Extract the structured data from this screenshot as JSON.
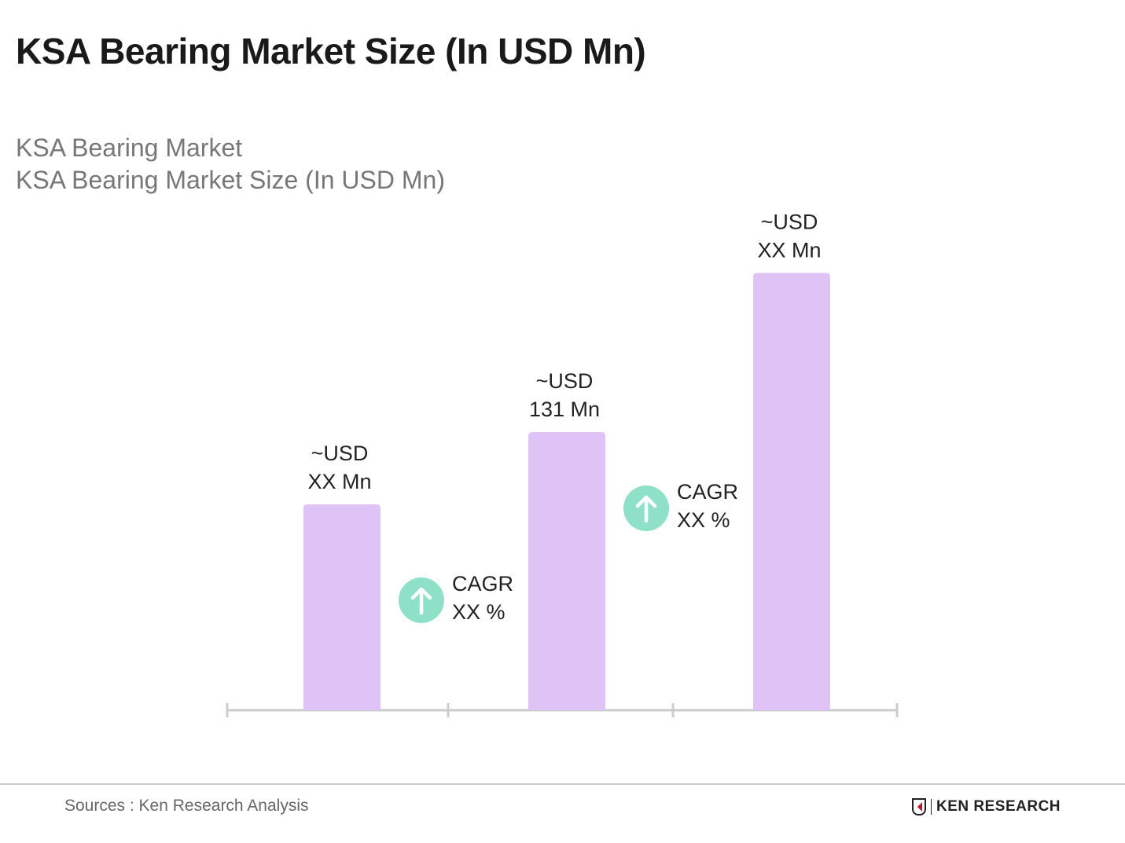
{
  "chart_data": {
    "type": "bar",
    "title": "KSA Bearing Market Size (In USD Mn)",
    "subtitle": [
      "KSA Bearing Market",
      "KSA Bearing Market Size (In USD Mn)"
    ],
    "categories": [
      "",
      "",
      ""
    ],
    "values": [
      97,
      131,
      206
    ],
    "data_labels": [
      [
        "~USD",
        "XX Mn"
      ],
      [
        "~USD",
        "131 Mn"
      ],
      [
        "~USD",
        "XX Mn"
      ]
    ],
    "annotations": [
      {
        "between": [
          0,
          1
        ],
        "lines": [
          "CAGR",
          "XX %"
        ],
        "icon": "arrow-up-circle-icon"
      },
      {
        "between": [
          1,
          2
        ],
        "lines": [
          "CAGR",
          "XX %"
        ],
        "icon": "arrow-up-circle-icon"
      }
    ],
    "xlabel": "",
    "ylabel": "",
    "ylim": [
      0,
      240
    ],
    "grid": false,
    "colors": {
      "bar": "#dfc3f7",
      "cagr": "#8ee0c6",
      "axis": "#cccccc"
    }
  },
  "footer": {
    "source": "Sources : Ken Research Analysis",
    "logo": "KEN RESEARCH"
  }
}
